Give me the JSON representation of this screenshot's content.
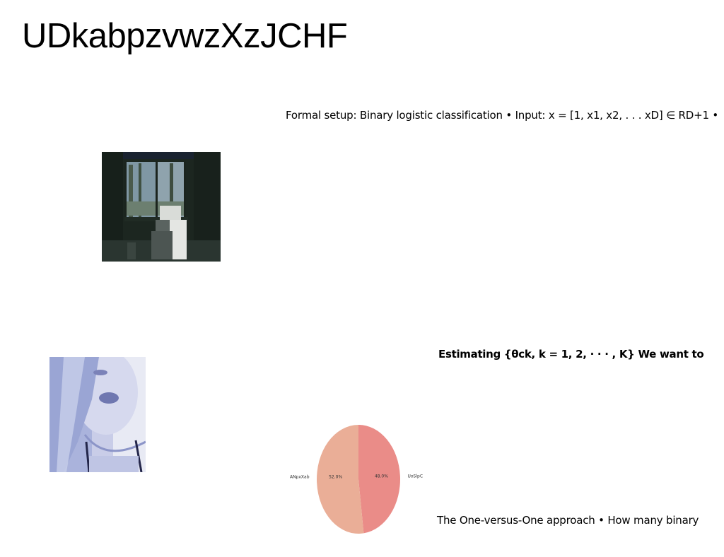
{
  "title": "UDkabpzvwzXzJCHF",
  "blocks": [
    {
      "text": "Formal setup: Binary logistic classification • Input: x = [1, x1, x2, . . . xD] ∈ RD+1 •"
    },
    {
      "text": "Estimating {θck, k = 1, 2, · · · , K} We want to"
    },
    {
      "text": "The One-versus-One approach • How many binary"
    }
  ],
  "images": [
    {
      "name": "room-photo",
      "icon": "sunroom-photo"
    },
    {
      "name": "person-photo",
      "icon": "portrait-photo"
    }
  ],
  "chart_data": {
    "type": "pie",
    "slices": [
      {
        "label": "UoSlpC",
        "value": 48.0,
        "pct_label": "48.0%",
        "color": "#ea8c88"
      },
      {
        "label": "ANpxXab",
        "value": 52.0,
        "pct_label": "52.0%",
        "color": "#eaae97"
      }
    ],
    "start_angle_deg": 90,
    "direction": "clockwise"
  }
}
